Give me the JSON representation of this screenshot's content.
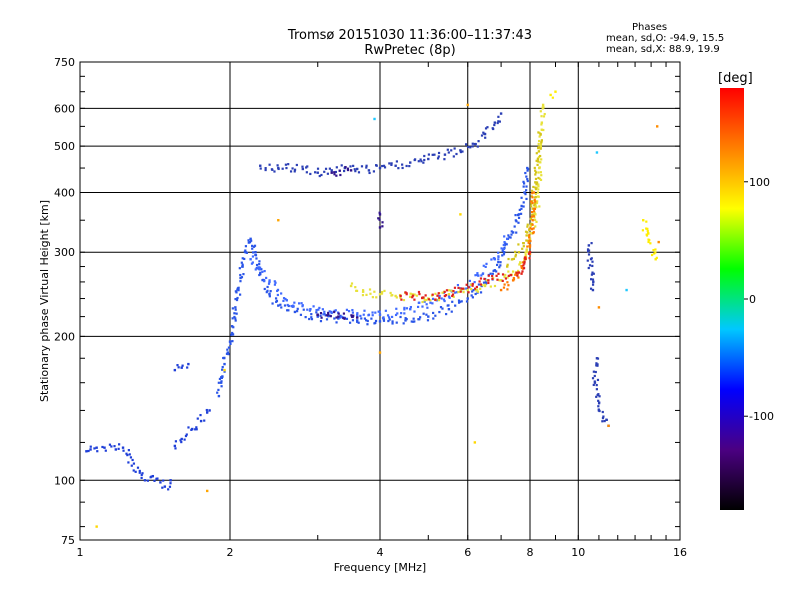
{
  "header": {
    "line1": "Tromsø 20151030 11:36:00–11:37:43",
    "line2": "RwPretec (8p)"
  },
  "stats": {
    "title": "Phases",
    "line_o": "mean, sd,O:  -94.9, 15.5",
    "line_x": "mean, sd,X:   88.9, 19.9"
  },
  "chart_data": {
    "type": "scatter",
    "xlabel": "Frequency [MHz]",
    "ylabel": "Stationary phase Virtual Height [km]",
    "x_scale": "log",
    "y_scale": "log",
    "xlim": [
      1,
      16
    ],
    "ylim": [
      75,
      750
    ],
    "x_ticks": [
      1,
      2,
      4,
      6,
      8,
      10,
      16
    ],
    "x_tick_labels": [
      "1",
      "2",
      "4",
      "6",
      "8",
      "10",
      "16"
    ],
    "x_grid": [
      2,
      4,
      6,
      8,
      10
    ],
    "y_ticks": [
      75,
      100,
      200,
      300,
      400,
      500,
      600,
      750
    ],
    "y_tick_labels": [
      "75",
      "100",
      "200",
      "300",
      "400",
      "500",
      "600",
      "750"
    ],
    "y_grid": [
      100,
      200,
      300,
      400,
      500,
      600
    ],
    "grid": true,
    "colorbar": {
      "label": "[deg]",
      "range": [
        -180,
        180
      ],
      "ticks": [
        100,
        0,
        -100
      ],
      "tick_labels": [
        "100",
        "0",
        "-100"
      ],
      "colors": [
        "#000000",
        "#4b0082",
        "#0000ff",
        "#00c8ff",
        "#00ff00",
        "#ffff00",
        "#ff8000",
        "#ff0000"
      ]
    },
    "series": [
      {
        "color": "#1f3fd8",
        "points": [
          [
            1.03,
            115
          ],
          [
            1.05,
            116
          ],
          [
            1.08,
            117
          ],
          [
            1.12,
            117
          ],
          [
            1.18,
            116
          ],
          [
            1.22,
            117
          ],
          [
            1.35,
            100
          ],
          [
            1.4,
            102
          ],
          [
            1.45,
            99
          ],
          [
            1.48,
            97
          ],
          [
            1.52,
            100
          ],
          [
            1.55,
            170
          ],
          [
            1.6,
            172
          ],
          [
            1.65,
            175
          ],
          [
            1.55,
            118
          ],
          [
            1.6,
            122
          ],
          [
            1.68,
            128
          ],
          [
            1.75,
            133
          ],
          [
            1.82,
            140
          ]
        ]
      },
      {
        "color": "#2a55e8",
        "points": [
          [
            1.9,
            150
          ],
          [
            1.92,
            160
          ],
          [
            1.95,
            175
          ],
          [
            1.98,
            185
          ],
          [
            2.0,
            195
          ],
          [
            2.02,
            210
          ],
          [
            2.05,
            230
          ],
          [
            2.08,
            250
          ],
          [
            2.1,
            265
          ],
          [
            2.12,
            280
          ],
          [
            2.15,
            300
          ],
          [
            2.2,
            320
          ],
          [
            2.25,
            300
          ],
          [
            2.3,
            270
          ],
          [
            2.4,
            245
          ],
          [
            2.5,
            232
          ],
          [
            2.7,
            225
          ],
          [
            3.0,
            220
          ],
          [
            3.3,
            218
          ],
          [
            3.6,
            216
          ],
          [
            4.0,
            215
          ],
          [
            4.5,
            216
          ],
          [
            5.0,
            220
          ],
          [
            5.5,
            228
          ],
          [
            6.0,
            240
          ],
          [
            6.4,
            255
          ],
          [
            6.8,
            275
          ],
          [
            7.1,
            300
          ],
          [
            7.4,
            330
          ],
          [
            7.6,
            360
          ],
          [
            7.8,
            400
          ],
          [
            7.9,
            450
          ]
        ]
      },
      {
        "color": "#3f6aff",
        "points": [
          [
            2.2,
            290
          ],
          [
            2.4,
            260
          ],
          [
            2.6,
            238
          ],
          [
            2.9,
            228
          ],
          [
            3.2,
            224
          ],
          [
            3.6,
            222
          ],
          [
            4.0,
            222
          ],
          [
            4.6,
            228
          ],
          [
            5.2,
            238
          ],
          [
            5.8,
            252
          ],
          [
            6.3,
            268
          ],
          [
            6.8,
            290
          ],
          [
            7.2,
            320
          ]
        ]
      },
      {
        "color": "#2b3fb5",
        "points": [
          [
            2.3,
            455
          ],
          [
            2.5,
            450
          ],
          [
            2.8,
            448
          ],
          [
            3.0,
            440
          ],
          [
            3.2,
            445
          ],
          [
            3.4,
            450
          ],
          [
            3.6,
            448
          ],
          [
            3.8,
            445
          ],
          [
            4.0,
            450
          ],
          [
            4.3,
            455
          ],
          [
            4.6,
            462
          ],
          [
            5.0,
            470
          ],
          [
            5.4,
            480
          ],
          [
            5.8,
            490
          ],
          [
            6.2,
            505
          ],
          [
            6.5,
            530
          ],
          [
            6.8,
            560
          ],
          [
            7.0,
            585
          ]
        ]
      },
      {
        "color": "#e8e23a",
        "points": [
          [
            3.5,
            255
          ],
          [
            3.7,
            248
          ],
          [
            4.0,
            245
          ],
          [
            4.3,
            243
          ],
          [
            4.6,
            242
          ],
          [
            5.0,
            240
          ],
          [
            5.5,
            245
          ],
          [
            6.0,
            250
          ],
          [
            6.5,
            255
          ],
          [
            7.0,
            262
          ],
          [
            7.5,
            272
          ],
          [
            7.8,
            290
          ],
          [
            8.0,
            320
          ],
          [
            8.2,
            360
          ],
          [
            8.3,
            400
          ],
          [
            8.35,
            450
          ],
          [
            8.4,
            500
          ],
          [
            8.45,
            560
          ],
          [
            8.5,
            610
          ]
        ]
      },
      {
        "color": "#d4c41a",
        "points": [
          [
            7.2,
            280
          ],
          [
            7.6,
            300
          ],
          [
            7.9,
            330
          ],
          [
            8.1,
            370
          ],
          [
            8.2,
            420
          ],
          [
            8.3,
            470
          ],
          [
            8.4,
            530
          ]
        ]
      },
      {
        "color": "#ff7a00",
        "points": [
          [
            7.0,
            250
          ],
          [
            7.4,
            262
          ],
          [
            7.7,
            280
          ],
          [
            8.0,
            310
          ],
          [
            8.1,
            350
          ],
          [
            8.15,
            400
          ]
        ]
      },
      {
        "color": "#e02020",
        "points": [
          [
            4.4,
            243
          ],
          [
            5.4,
            243
          ],
          [
            6.6,
            262
          ],
          [
            7.6,
            272
          ],
          [
            8.0,
            300
          ]
        ]
      },
      {
        "color": "#31138a",
        "points": [
          [
            3.0,
            222
          ],
          [
            3.3,
            220
          ],
          [
            3.6,
            219
          ],
          [
            3.2,
            440
          ],
          [
            3.5,
            445
          ],
          [
            4.0,
            338
          ],
          [
            4.0,
            360
          ]
        ]
      },
      {
        "color": "#ffa500",
        "points": [
          [
            1.8,
            95
          ],
          [
            2.5,
            350
          ],
          [
            6.0,
            610
          ],
          [
            4.0,
            185
          ]
        ]
      },
      {
        "color": "#ffd700",
        "points": [
          [
            1.08,
            80
          ],
          [
            1.95,
            170
          ],
          [
            6.2,
            120
          ],
          [
            5.8,
            360
          ]
        ]
      },
      {
        "color": "#2b3fb5",
        "points": [
          [
            10.5,
            310
          ],
          [
            10.7,
            250
          ],
          [
            10.9,
            180
          ],
          [
            10.8,
            160
          ],
          [
            11.0,
            140
          ],
          [
            11.5,
            130
          ]
        ]
      },
      {
        "color": "#ff8c00",
        "points": [
          [
            14.4,
            550
          ],
          [
            14.5,
            315
          ],
          [
            11.5,
            130
          ],
          [
            11.0,
            230
          ]
        ]
      },
      {
        "color": "#ffee00",
        "points": [
          [
            13.5,
            350
          ],
          [
            14.3,
            290
          ],
          [
            8.8,
            640
          ],
          [
            9.0,
            650
          ]
        ]
      },
      {
        "color": "#1ec8ff",
        "points": [
          [
            3.9,
            570
          ],
          [
            10.9,
            485
          ],
          [
            12.5,
            250
          ]
        ]
      }
    ]
  }
}
